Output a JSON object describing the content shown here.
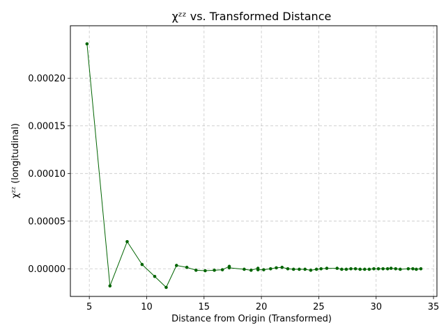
{
  "chart_data": {
    "type": "line",
    "title": "χᶻᶻ vs. Transformed Distance",
    "xlabel": "Distance from Origin (Transformed)",
    "ylabel": "χᶻᶻ (longitudinal)",
    "xlim": [
      3.35,
      35.3
    ],
    "ylim": [
      -2.9e-05,
      0.000255
    ],
    "xticks": [
      5,
      10,
      15,
      20,
      25,
      30,
      35
    ],
    "xtick_labels": [
      "5",
      "10",
      "15",
      "20",
      "25",
      "30",
      "35"
    ],
    "yticks": [
      0,
      5e-05,
      0.0001,
      0.00015,
      0.0002
    ],
    "ytick_labels": [
      "0.00000",
      "0.00005",
      "0.00010",
      "0.00015",
      "0.00020"
    ],
    "grid": true,
    "grid_style": "dashed",
    "legend": "none",
    "series": [
      {
        "color": "#006400",
        "x": [
          4.8,
          6.8,
          8.3,
          9.6,
          10.7,
          11.7,
          12.6,
          13.5,
          14.3,
          15.1,
          15.9,
          16.6,
          17.2,
          17.2,
          18.5,
          19.1,
          19.7,
          19.7,
          20.2,
          20.8,
          21.3,
          21.8,
          22.3,
          22.8,
          23.3,
          23.8,
          24.3,
          24.8,
          25.2,
          25.7,
          26.6,
          27.0,
          27.4,
          27.8,
          28.2,
          28.6,
          29.0,
          29.4,
          29.8,
          30.2,
          30.6,
          31.0,
          31.3,
          31.7,
          32.1,
          32.8,
          33.2,
          33.5,
          33.9
        ],
        "y": [
          0.000236,
          -1.8e-05,
          2.85e-05,
          4.5e-06,
          -8e-06,
          -1.95e-05,
          3.5e-06,
          1.5e-06,
          -1.5e-06,
          -2e-06,
          -1.5e-06,
          -1e-06,
          2.5e-06,
          1e-06,
          -5e-07,
          -1.5e-06,
          5e-07,
          -1e-06,
          -1e-06,
          0.0,
          1e-06,
          1.5e-06,
          0.0,
          -5e-07,
          -5e-07,
          -5e-07,
          -1.5e-06,
          -5e-07,
          0.0,
          5e-07,
          5e-07,
          -5e-07,
          -5e-07,
          0.0,
          0.0,
          -5e-07,
          -5e-07,
          -5e-07,
          0.0,
          0.0,
          0.0,
          0.0,
          5e-07,
          0.0,
          -5e-07,
          0.0,
          0.0,
          -5e-07,
          0.0
        ]
      }
    ]
  }
}
